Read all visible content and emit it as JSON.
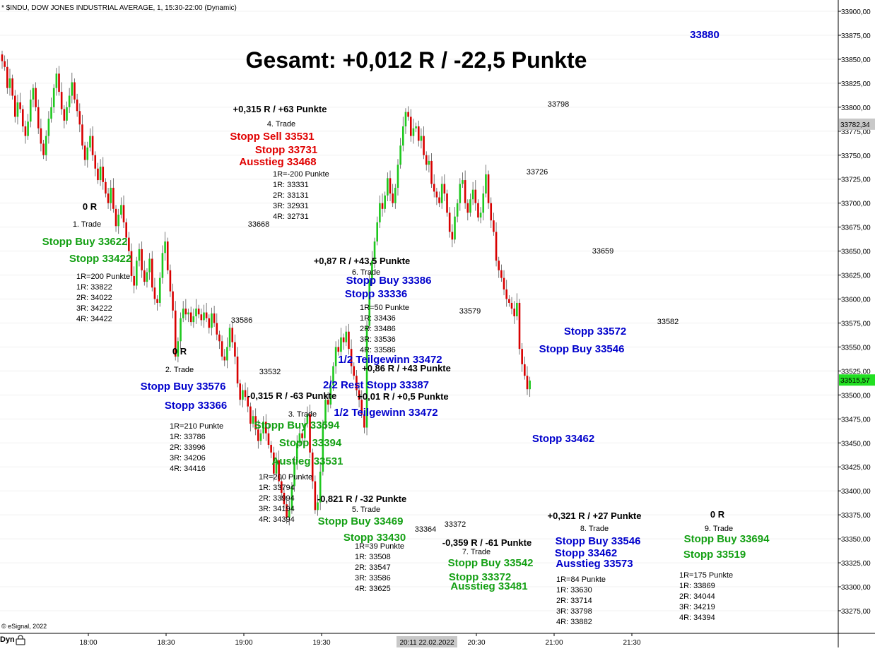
{
  "header": {
    "symbol_line": "* $INDU, DOW JONES INDUSTRIAL AVERAGE, 1, 15:30-22:00 (Dynamic)",
    "copyright": "© eSignal, 2022",
    "dyn_label": "Dyn"
  },
  "chart_data": {
    "type": "candlestick",
    "title": "Gesamt: +0,012 R / -22,5 Punkte",
    "ylim": [
      33250,
      33910
    ],
    "y_ticks": [
      "33275,00",
      "33300,00",
      "33325,00",
      "33350,00",
      "33375,00",
      "33400,00",
      "33425,00",
      "33450,00",
      "33475,00",
      "33500,00",
      "33525,00",
      "33550,00",
      "33575,00",
      "33600,00",
      "33625,00",
      "33650,00",
      "33675,00",
      "33700,00",
      "33725,00",
      "33750,00",
      "33775,00",
      "33800,00",
      "33825,00",
      "33850,00",
      "33875,00",
      "33900,00"
    ],
    "x_ticks": [
      "18:00",
      "18:30",
      "19:00",
      "19:30",
      "20:30",
      "21:00",
      "21:30"
    ],
    "crosshair_time": "20:11 22.02.2022",
    "price_marker": "33782,34",
    "last_price": "33515,57",
    "colors": {
      "up": "#1ec81e",
      "down": "#d80000",
      "last_bg": "#22e022",
      "marker_bg": "#c8c8c8"
    },
    "closes": [
      33848,
      33842,
      33820,
      33830,
      33812,
      33790,
      33805,
      33798,
      33780,
      33770,
      33785,
      33808,
      33820,
      33800,
      33778,
      33762,
      33750,
      33770,
      33788,
      33800,
      33820,
      33835,
      33816,
      33798,
      33786,
      33800,
      33812,
      33826,
      33808,
      33796,
      33782,
      33760,
      33745,
      33758,
      33770,
      33750,
      33736,
      33724,
      33738,
      33722,
      33710,
      33700,
      33716,
      33694,
      33676,
      33688,
      33698,
      33680,
      33664,
      33650,
      33624,
      33614,
      33640,
      33652,
      33630,
      33618,
      33628,
      33642,
      33612,
      33600,
      33596,
      33622,
      33648,
      33660,
      33630,
      33608,
      33588,
      33540,
      33556,
      33580,
      33590,
      33584,
      33586,
      33576,
      33582,
      33590,
      33584,
      33578,
      33586,
      33580,
      33570,
      33585,
      33575,
      33563,
      33556,
      33540,
      33536,
      33550,
      33570,
      33555,
      33540,
      33512,
      33495,
      33505,
      33498,
      33488,
      33470,
      33478,
      33464,
      33452,
      33460,
      33472,
      33460,
      33448,
      33440,
      33418,
      33432,
      33410,
      33398,
      33386,
      33372,
      33380,
      33405,
      33430,
      33450,
      33460,
      33455,
      33470,
      33480,
      33440,
      33410,
      33380,
      33388,
      33420,
      33470,
      33495,
      33490,
      33510,
      33530,
      33550,
      33545,
      33560,
      33555,
      33566,
      33548,
      33530,
      33520,
      33505,
      33495,
      33480,
      33466,
      33572,
      33620,
      33640,
      33660,
      33680,
      33700,
      33694,
      33708,
      33726,
      33710,
      33700,
      33716,
      33740,
      33760,
      33780,
      33795,
      33790,
      33770,
      33778,
      33780,
      33765,
      33770,
      33750,
      33740,
      33744,
      33720,
      33712,
      33706,
      33700,
      33720,
      33710,
      33690,
      33670,
      33662,
      33686,
      33700,
      33720,
      33724,
      33700,
      33690,
      33704,
      33714,
      33700,
      33685,
      33690,
      33710,
      33730,
      33700,
      33682,
      33670,
      33640,
      33630,
      33622,
      33610,
      33600,
      33596,
      33590,
      33582,
      33596,
      33548,
      33532,
      33520,
      33506,
      33515
    ],
    "annotations": [
      {
        "text": "Gesamt: +0,012 R / -22,5 Punkte",
        "style": "title"
      },
      {
        "text": "33880",
        "style": "blue"
      },
      {
        "text": "+0,315 R / +63 Punkte",
        "style": "bold"
      },
      {
        "text": "4. Trade",
        "style": "small"
      },
      {
        "text": "Stopp Sell 33531",
        "style": "red"
      },
      {
        "text": "Stopp 33731",
        "style": "red"
      },
      {
        "text": "Ausstieg 33468",
        "style": "red"
      },
      {
        "text": "1R=-200 Punkte",
        "style": "small"
      },
      {
        "text": "1R: 33331",
        "style": "small"
      },
      {
        "text": "2R: 33131",
        "style": "small"
      },
      {
        "text": "3R: 32931",
        "style": "small"
      },
      {
        "text": "4R: 32731",
        "style": "small"
      },
      {
        "text": "33668",
        "style": "small"
      },
      {
        "text": "0 R",
        "style": "bold"
      },
      {
        "text": "1. Trade",
        "style": "small"
      },
      {
        "text": "Stopp Buy 33622",
        "style": "green"
      },
      {
        "text": "Stopp 33422",
        "style": "green"
      },
      {
        "text": "1R=200 Punkte",
        "style": "small"
      },
      {
        "text": "1R: 33822",
        "style": "small"
      },
      {
        "text": "2R: 34022",
        "style": "small"
      },
      {
        "text": "3R: 34222",
        "style": "small"
      },
      {
        "text": "4R: 34422",
        "style": "small"
      },
      {
        "text": "33586",
        "style": "small"
      },
      {
        "text": "+0,87 R / +43,5 Punkte",
        "style": "bold"
      },
      {
        "text": "6. Trade",
        "style": "small"
      },
      {
        "text": "Stopp Buy 33386",
        "style": "blue"
      },
      {
        "text": "Stopp 33336",
        "style": "blue"
      },
      {
        "text": "1R=50 Punkte",
        "style": "small"
      },
      {
        "text": "1R: 33436",
        "style": "small"
      },
      {
        "text": "2R: 33486",
        "style": "small"
      },
      {
        "text": "3R: 33536",
        "style": "small"
      },
      {
        "text": "4R: 33586",
        "style": "small"
      },
      {
        "text": "33579",
        "style": "small"
      },
      {
        "text": "33532",
        "style": "small"
      },
      {
        "text": "0 R",
        "style": "bold"
      },
      {
        "text": "2. Trade",
        "style": "small"
      },
      {
        "text": "Stopp Buy 33576",
        "style": "blue"
      },
      {
        "text": "Stopp 33366",
        "style": "blue"
      },
      {
        "text": "1R=210 Punkte",
        "style": "small"
      },
      {
        "text": "1R: 33786",
        "style": "small"
      },
      {
        "text": "2R: 33996",
        "style": "small"
      },
      {
        "text": "3R: 34206",
        "style": "small"
      },
      {
        "text": "4R: 34416",
        "style": "small"
      },
      {
        "text": "1/2 Teilgewinn 33472",
        "style": "blue"
      },
      {
        "text": "+0,86 R / +43 Punkte",
        "style": "bold"
      },
      {
        "text": "2/2 Rest Stopp 33387",
        "style": "blue"
      },
      {
        "text": "-0,315 R / -63 Punkte",
        "style": "bold"
      },
      {
        "text": "+0,01 R / +0,5 Punkte",
        "style": "bold"
      },
      {
        "text": "3. Trade",
        "style": "small"
      },
      {
        "text": "1/2 Teilgewinn 33472",
        "style": "blue"
      },
      {
        "text": "Stopp Buy 33594",
        "style": "green"
      },
      {
        "text": "Stopp 33394",
        "style": "green"
      },
      {
        "text": "Austieg 33531",
        "style": "green"
      },
      {
        "text": "1R=200 Punkte",
        "style": "small"
      },
      {
        "text": "1R: 33794",
        "style": "small"
      },
      {
        "text": "2R: 33994",
        "style": "small"
      },
      {
        "text": "3R: 34194",
        "style": "small"
      },
      {
        "text": "4R: 34394",
        "style": "small"
      },
      {
        "text": "-0,821 R / -32 Punkte",
        "style": "bold"
      },
      {
        "text": "5. Trade",
        "style": "small"
      },
      {
        "text": "Stopp Buy 33469",
        "style": "green"
      },
      {
        "text": "Stopp 33430",
        "style": "green"
      },
      {
        "text": "1R=39 Punkte",
        "style": "small"
      },
      {
        "text": "1R: 33508",
        "style": "small"
      },
      {
        "text": "2R: 33547",
        "style": "small"
      },
      {
        "text": "3R: 33586",
        "style": "small"
      },
      {
        "text": "4R: 33625",
        "style": "small"
      },
      {
        "text": "33364",
        "style": "small"
      },
      {
        "text": "33372",
        "style": "small"
      },
      {
        "text": "-0,359 R / -61 Punkte",
        "style": "bold"
      },
      {
        "text": "7. Trade",
        "style": "small"
      },
      {
        "text": "Stopp Buy 33542",
        "style": "green"
      },
      {
        "text": "Stopp 33372",
        "style": "green"
      },
      {
        "text": "Ausstieg 33481",
        "style": "green"
      },
      {
        "text": "33798",
        "style": "small"
      },
      {
        "text": "33726",
        "style": "small"
      },
      {
        "text": "33659",
        "style": "small"
      },
      {
        "text": "33582",
        "style": "small"
      },
      {
        "text": "Stopp 33572",
        "style": "blue"
      },
      {
        "text": "Stopp Buy 33546",
        "style": "blue"
      },
      {
        "text": "Stopp 33462",
        "style": "blue"
      },
      {
        "text": "+0,321 R / +27 Punkte",
        "style": "bold"
      },
      {
        "text": "8. Trade",
        "style": "small"
      },
      {
        "text": "Stopp Buy 33546",
        "style": "blue"
      },
      {
        "text": "Stopp 33462",
        "style": "blue"
      },
      {
        "text": "Ausstieg 33573",
        "style": "blue"
      },
      {
        "text": "1R=84 Punkte",
        "style": "small"
      },
      {
        "text": "1R: 33630",
        "style": "small"
      },
      {
        "text": "2R: 33714",
        "style": "small"
      },
      {
        "text": "3R: 33798",
        "style": "small"
      },
      {
        "text": "4R: 33882",
        "style": "small"
      },
      {
        "text": "0 R",
        "style": "bold"
      },
      {
        "text": "9. Trade",
        "style": "small"
      },
      {
        "text": "Stopp Buy 33694",
        "style": "green"
      },
      {
        "text": "Stopp 33519",
        "style": "green"
      },
      {
        "text": "1R=175 Punkte",
        "style": "small"
      },
      {
        "text": "1R: 33869",
        "style": "small"
      },
      {
        "text": "2R: 34044",
        "style": "small"
      },
      {
        "text": "3R: 34219",
        "style": "small"
      },
      {
        "text": "4R: 34394",
        "style": "small"
      }
    ]
  }
}
